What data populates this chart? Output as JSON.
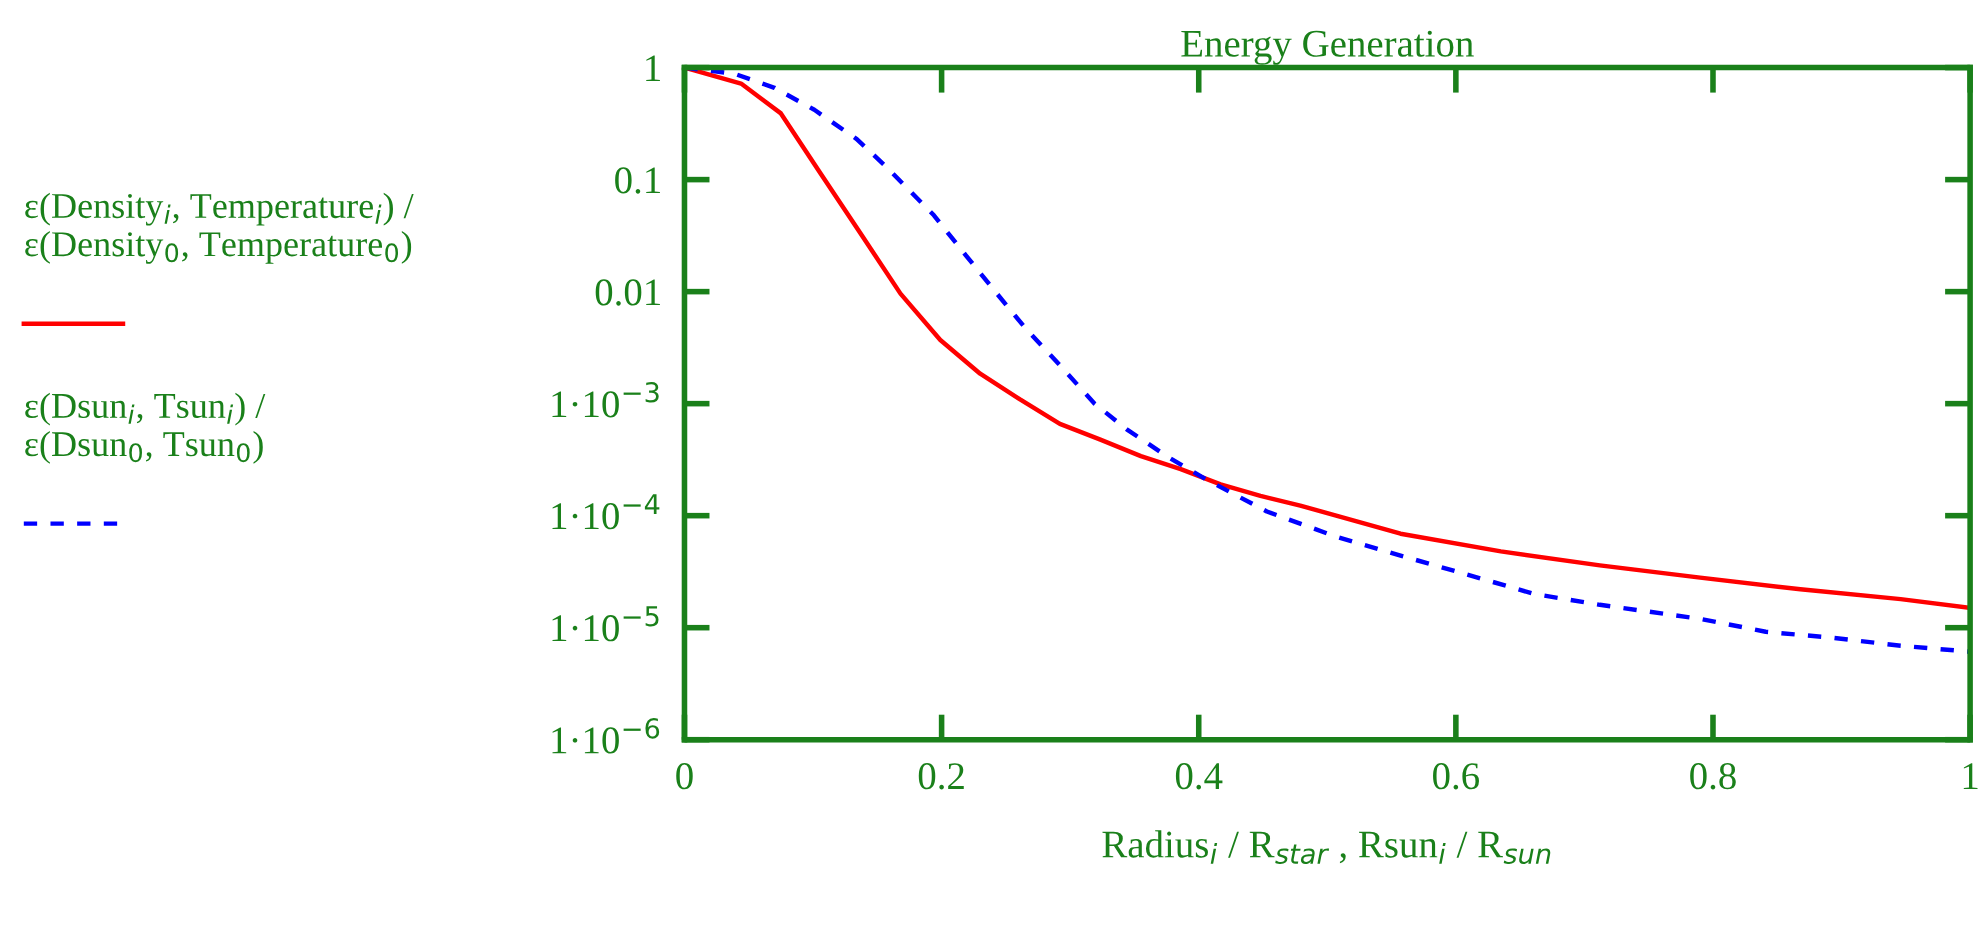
{
  "chart_data": {
    "type": "line",
    "title": "Energy Generation",
    "xlabel": "Radius$_{i}$ / R$_{star}$ , Rsun$_{i}$ / R$_{sun}$",
    "log": "y",
    "grid": false,
    "marker": "none",
    "xlim": [
      0,
      1
    ],
    "xticks": [
      0,
      0.2,
      0.4,
      0.6,
      0.8,
      1
    ],
    "ylim": [
      1e-06,
      1
    ],
    "yticks": [
      1,
      0.1,
      0.01,
      {
        "value": 0.001,
        "label": "1·10$^{−3}$"
      },
      {
        "value": 0.0001,
        "label": "1·10$^{−4}$"
      },
      {
        "value": 1e-05,
        "label": "1·10$^{−5}$"
      },
      {
        "value": 1e-06,
        "label": "1·10$^{−6}$"
      }
    ],
    "series": [
      {
        "name": "ε(Density$_{i}$, Temperature$_{i}$) /\nε(Density$_{0}$, Temperature$_{0}$)",
        "color": "#ff0000",
        "line_style": "solid",
        "x": [
          0,
          0.044,
          0.075,
          0.106,
          0.137,
          0.168,
          0.199,
          0.23,
          0.261,
          0.292,
          0.323,
          0.355,
          0.386,
          0.417,
          0.448,
          0.479,
          0.557,
          0.635,
          0.712,
          0.79,
          0.868,
          0.946,
          1.0
        ],
        "values": [
          1,
          0.72,
          0.39,
          0.113,
          0.033,
          0.0096,
          0.0037,
          0.00185,
          0.00109,
          0.00066,
          0.00048,
          0.00034,
          0.00026,
          0.00019,
          0.00015,
          0.000123,
          6.9e-05,
          4.8e-05,
          3.6e-05,
          2.8e-05,
          2.2e-05,
          1.8e-05,
          1.5e-05
        ]
      },
      {
        "name": "ε(Dsun$_{i}$, Tsun$_{i}$) /\nε(Dsun$_{0}$, Tsun$_{0}$)",
        "color": "#0000ff",
        "line_style": "dashed",
        "x": [
          0,
          0.039,
          0.07,
          0.101,
          0.134,
          0.157,
          0.194,
          0.219,
          0.243,
          0.266,
          0.292,
          0.319,
          0.344,
          0.375,
          0.406,
          0.453,
          0.505,
          0.557,
          0.608,
          0.661,
          0.712,
          0.79,
          0.841,
          0.894,
          0.946,
          1.0
        ],
        "values": [
          1,
          0.88,
          0.66,
          0.42,
          0.23,
          0.13,
          0.048,
          0.021,
          0.0096,
          0.0046,
          0.0022,
          0.001,
          0.00059,
          0.00034,
          0.00021,
          0.000109,
          6.6e-05,
          4.4e-05,
          3e-05,
          2e-05,
          1.6e-05,
          1.2e-05,
          9.2e-06,
          8.1e-06,
          6.9e-06,
          6.1e-06
        ]
      }
    ]
  }
}
